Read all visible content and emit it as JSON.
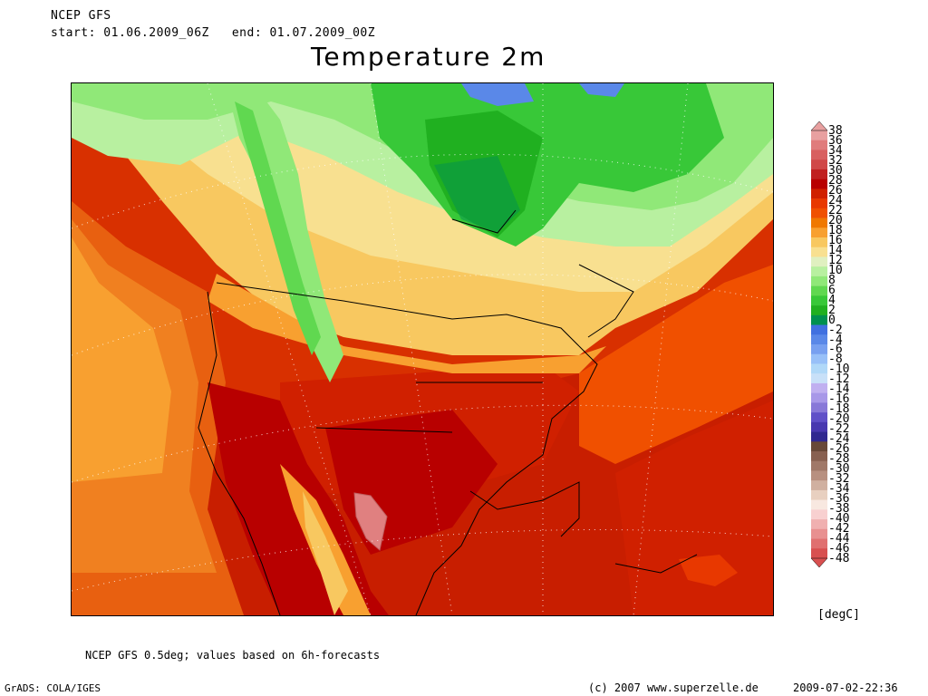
{
  "header": {
    "model": "NCEP GFS",
    "run_info": "start: 01.06.2009_06Z   end: 01.07.2009_00Z"
  },
  "title": "Temperature 2m",
  "colorbar": {
    "labels": [
      "38",
      "36",
      "34",
      "32",
      "30",
      "28",
      "26",
      "24",
      "22",
      "20",
      "18",
      "16",
      "14",
      "12",
      "10",
      "8",
      "6",
      "4",
      "2",
      "0",
      "-2",
      "-4",
      "-6",
      "-8",
      "-10",
      "-12",
      "-14",
      "-16",
      "-18",
      "-20",
      "-22",
      "-24",
      "-26",
      "-28",
      "-30",
      "-32",
      "-34",
      "-36",
      "-38",
      "-40",
      "-42",
      "-44",
      "-46",
      "-48"
    ],
    "colors": [
      "#e8a0a0",
      "#e07c7c",
      "#d86060",
      "#d04848",
      "#c02020",
      "#b80000",
      "#d02000",
      "#e83800",
      "#f05000",
      "#f07800",
      "#f8a030",
      "#f8c860",
      "#f8e090",
      "#e0f0c0",
      "#b8f0a0",
      "#90e878",
      "#60d850",
      "#38c838",
      "#20b020",
      "#009050",
      "#4070e0",
      "#5a88e8",
      "#78a0f0",
      "#98c0f8",
      "#b0d8f8",
      "#c8e0f8",
      "#c0b0f0",
      "#a898e8",
      "#8878d8",
      "#6050c8",
      "#4838b0",
      "#302890",
      "#684838",
      "#886050",
      "#a07868",
      "#b89080",
      "#d0b0a0",
      "#e8d0c0",
      "#f8e8e0",
      "#f8d0d0",
      "#f0b0b0",
      "#e89090",
      "#e07070",
      "#d85050"
    ],
    "units": "[degC]"
  },
  "footer": {
    "note": "NCEP GFS 0.5deg; values based on 6h-forecasts",
    "software": "GrADS: COLA/IGES",
    "copyright": "(c) 2007 www.superzelle.de",
    "timestamp": "2009-07-02-22:36"
  }
}
